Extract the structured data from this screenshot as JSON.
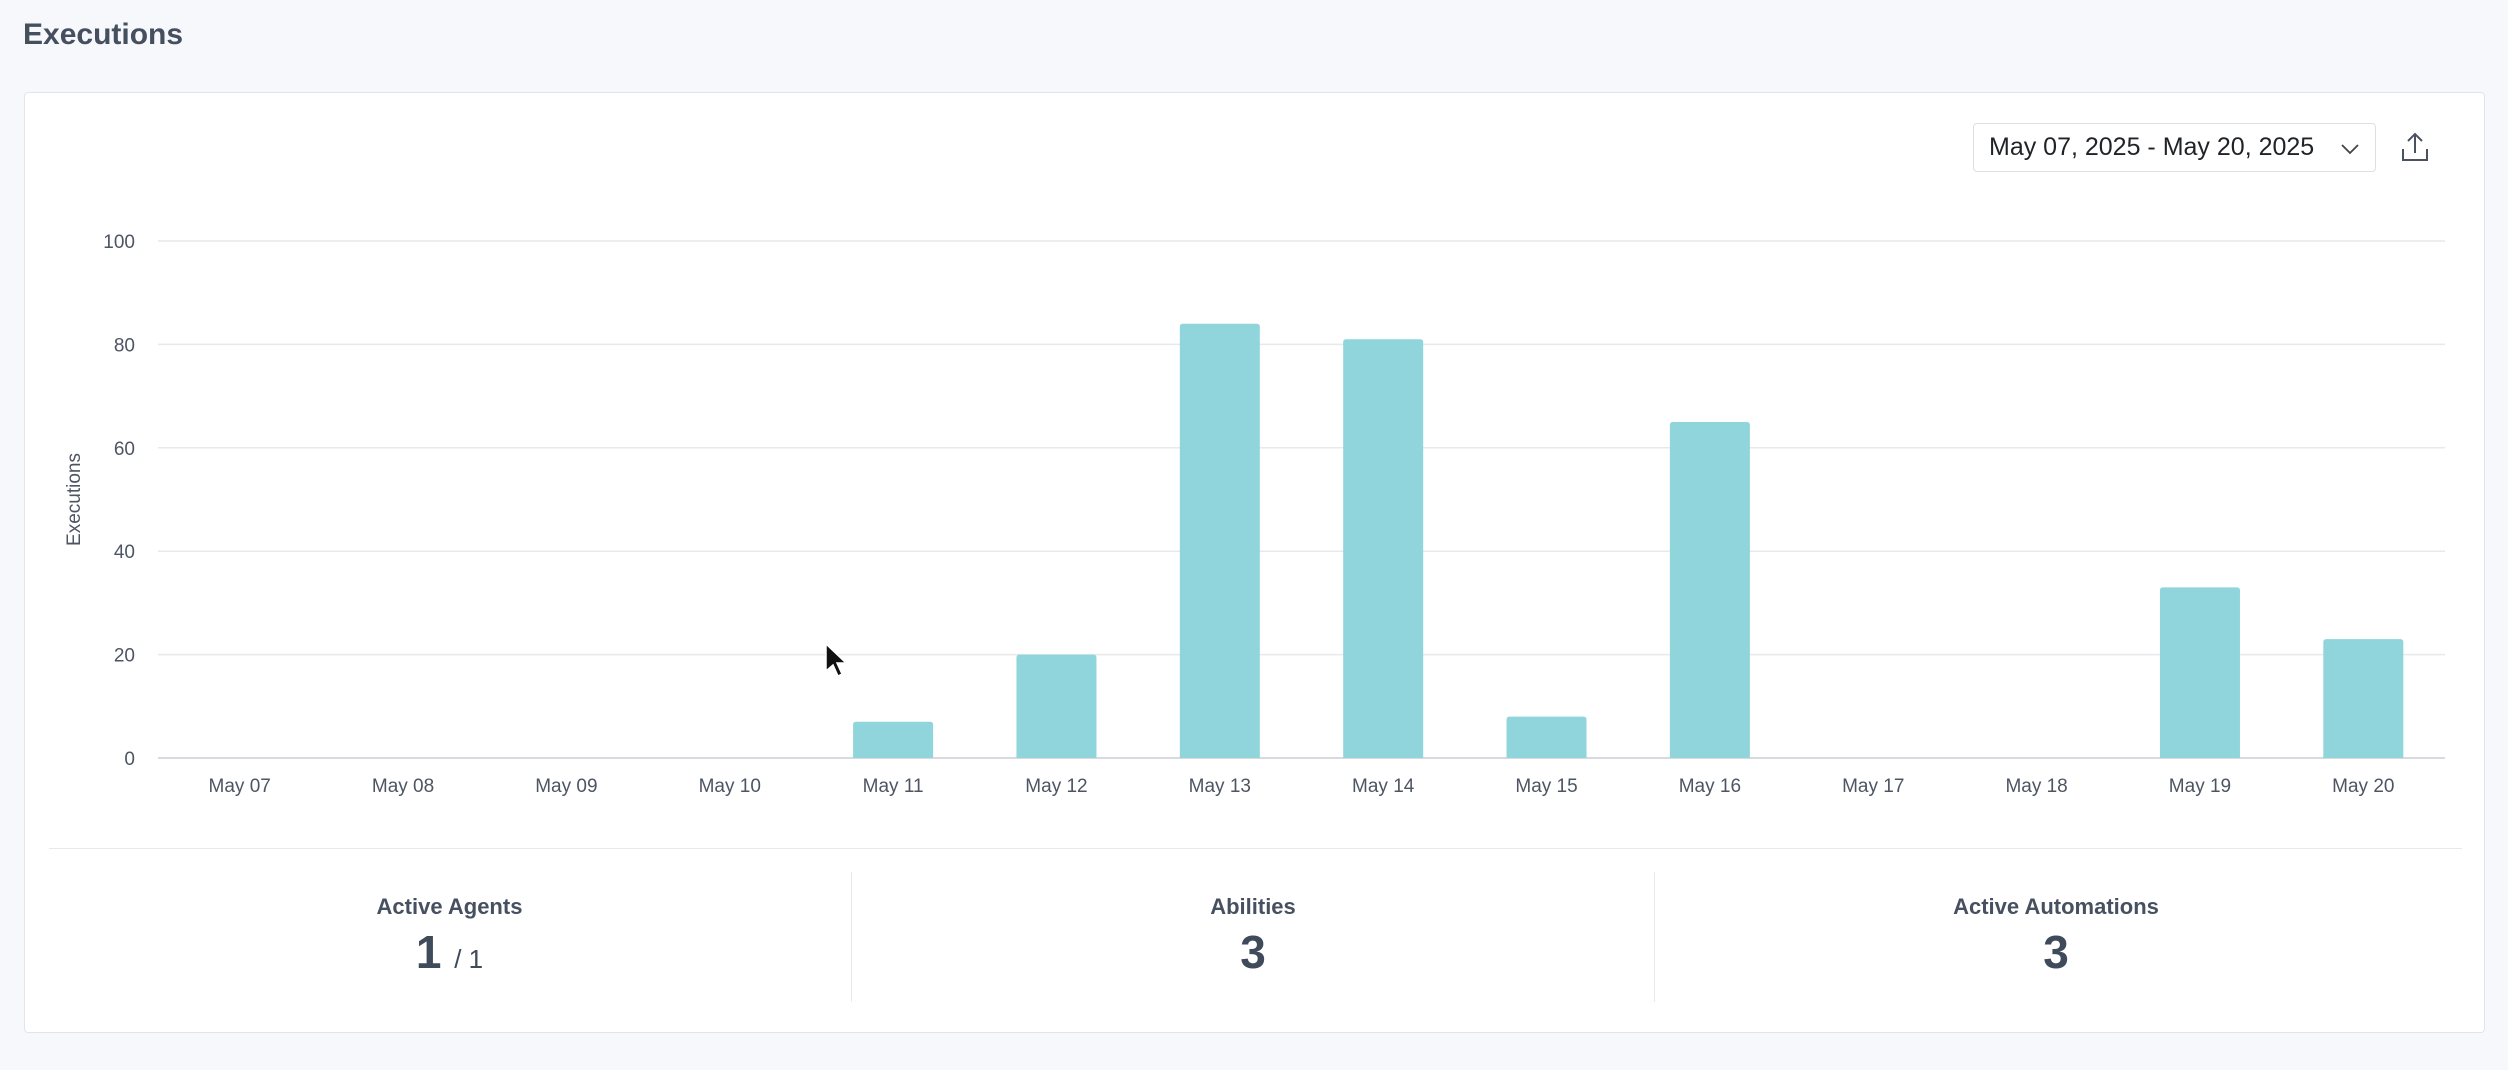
{
  "page": {
    "title": "Executions"
  },
  "toolbar": {
    "date_range": "May 07, 2025 - May 20, 2025",
    "date_icon": "chevron-down-icon",
    "export_icon": "upload-export-icon"
  },
  "chart_data": {
    "type": "bar",
    "ylabel": "Executions",
    "xlabel": "",
    "ylim": [
      0,
      100
    ],
    "yticks": [
      0,
      20,
      40,
      60,
      80,
      100
    ],
    "grid": true,
    "categories": [
      "May 07",
      "May 08",
      "May 09",
      "May 10",
      "May 11",
      "May 12",
      "May 13",
      "May 14",
      "May 15",
      "May 16",
      "May 17",
      "May 18",
      "May 19",
      "May 20"
    ],
    "values": [
      0,
      0,
      0,
      0,
      7,
      20,
      84,
      81,
      8,
      65,
      0,
      0,
      33,
      23
    ],
    "bar_color": "#8fd5db"
  },
  "stats": [
    {
      "label": "Active Agents",
      "value": "1",
      "sub": "/ 1"
    },
    {
      "label": "Abilities",
      "value": "3",
      "sub": ""
    },
    {
      "label": "Active Automations",
      "value": "3",
      "sub": ""
    }
  ]
}
